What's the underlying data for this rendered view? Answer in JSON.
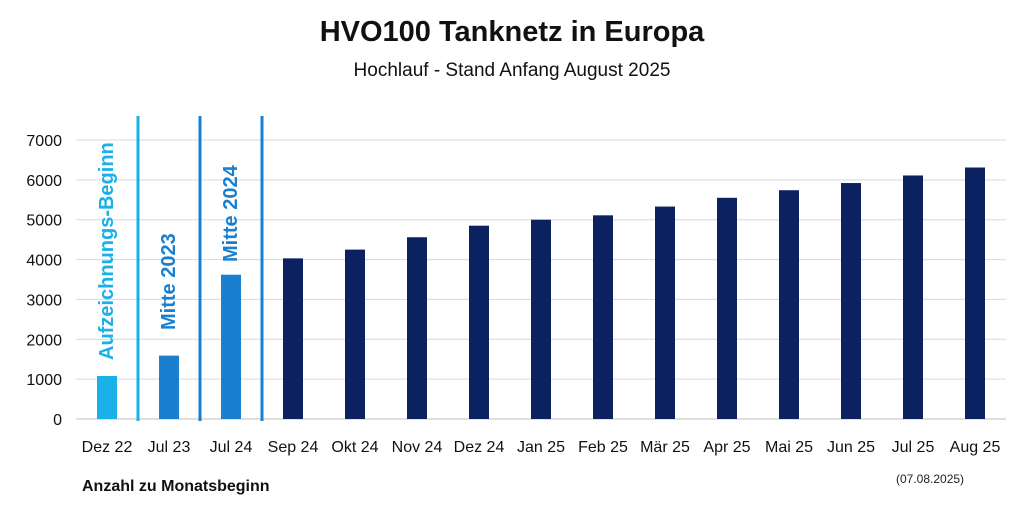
{
  "chart_data": {
    "type": "bar",
    "title": "HVO100 Tanknetz in Europa",
    "subtitle": "Hochlauf - Stand Anfang August 2025",
    "categories": [
      "Dez 22",
      "Jul 23",
      "Jul 24",
      "Sep 24",
      "Okt 24",
      "Nov 24",
      "Dez 24",
      "Jan 25",
      "Feb 25",
      "Mär 25",
      "Apr 25",
      "Mai 25",
      "Jun 25",
      "Jul 25",
      "Aug 25"
    ],
    "values": [
      1080,
      1590,
      3620,
      4030,
      4250,
      4560,
      4850,
      5000,
      5110,
      5330,
      5550,
      5740,
      5920,
      6110,
      6310
    ],
    "bar_colors": [
      "#1ab0e8",
      "#1a7fcf",
      "#1a7fcf",
      "#0b2160",
      "#0b2160",
      "#0b2160",
      "#0b2160",
      "#0b2160",
      "#0b2160",
      "#0b2160",
      "#0b2160",
      "#0b2160",
      "#0b2160",
      "#0b2160",
      "#0b2160"
    ],
    "ylim": [
      0,
      7000
    ],
    "yticks": [
      0,
      1000,
      2000,
      3000,
      4000,
      5000,
      6000,
      7000
    ],
    "grid": true,
    "annotations": [
      {
        "text": "Aufzeichnungs-Beginn",
        "category_index": 0,
        "color": "#1ab0e8"
      },
      {
        "text": "Mitte 2023",
        "category_index": 1,
        "color": "#1a7fcf"
      },
      {
        "text": "Mitte 2024",
        "category_index": 2,
        "color": "#1a7fcf"
      }
    ],
    "separator_colors": [
      "#1ab0e8",
      "#1a7fcf",
      "#1a7fcf"
    ]
  },
  "footer": {
    "left_note": "Anzahl zu Monatsbeginn",
    "date_note": "(07.08.2025)"
  }
}
